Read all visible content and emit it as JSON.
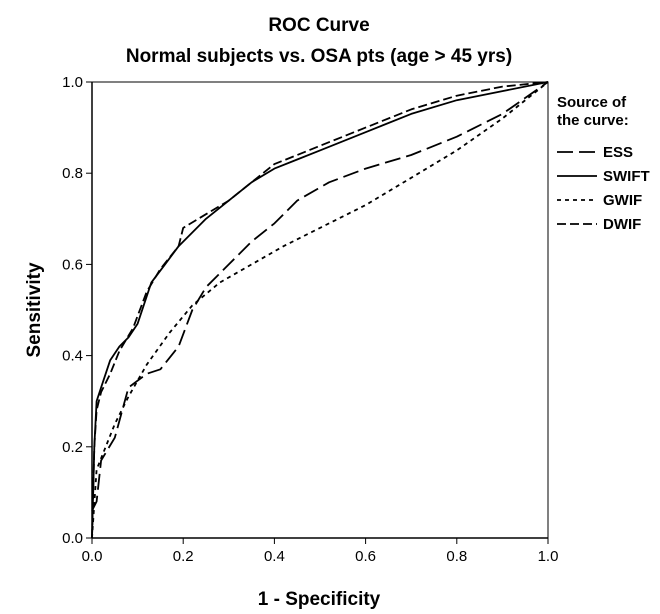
{
  "chart_data": {
    "type": "line",
    "title": "ROC Curve",
    "subtitle": "Normal subjects vs. OSA pts (age > 45 yrs)",
    "xlabel": "1 - Specificity",
    "ylabel": "Sensitivity",
    "xlim": [
      0.0,
      1.0
    ],
    "ylim": [
      0.0,
      1.0
    ],
    "xticks": [
      "0.0",
      "0.2",
      "0.4",
      "0.6",
      "0.8",
      "1.0"
    ],
    "yticks": [
      "0.0",
      "0.2",
      "0.4",
      "0.6",
      "0.8",
      "1.0"
    ],
    "grid": false,
    "legend": {
      "title": "Source of the curve:",
      "title_lines": [
        "Source of",
        "the curve:"
      ],
      "placement": "right"
    },
    "series": [
      {
        "name": "ESS",
        "style": "long-dash",
        "x": [
          0.0,
          0.01,
          0.02,
          0.05,
          0.08,
          0.12,
          0.15,
          0.19,
          0.22,
          0.25,
          0.3,
          0.35,
          0.4,
          0.45,
          0.52,
          0.6,
          0.7,
          0.8,
          0.9,
          1.0
        ],
        "y": [
          0.06,
          0.08,
          0.17,
          0.22,
          0.33,
          0.36,
          0.37,
          0.42,
          0.5,
          0.55,
          0.6,
          0.65,
          0.69,
          0.74,
          0.78,
          0.81,
          0.84,
          0.88,
          0.93,
          1.0
        ]
      },
      {
        "name": "SWIFT",
        "style": "solid",
        "x": [
          0.0,
          0.005,
          0.01,
          0.02,
          0.04,
          0.06,
          0.08,
          0.1,
          0.13,
          0.16,
          0.19,
          0.22,
          0.25,
          0.3,
          0.35,
          0.4,
          0.45,
          0.5,
          0.6,
          0.7,
          0.8,
          0.9,
          1.0
        ],
        "y": [
          0.0,
          0.2,
          0.3,
          0.33,
          0.39,
          0.42,
          0.44,
          0.47,
          0.56,
          0.6,
          0.64,
          0.67,
          0.7,
          0.74,
          0.78,
          0.81,
          0.83,
          0.85,
          0.89,
          0.93,
          0.96,
          0.98,
          1.0
        ]
      },
      {
        "name": "GWIF",
        "style": "short-dash",
        "x": [
          0.0,
          0.01,
          0.03,
          0.05,
          0.08,
          0.12,
          0.17,
          0.22,
          0.28,
          0.35,
          0.42,
          0.5,
          0.6,
          0.7,
          0.8,
          0.9,
          1.0
        ],
        "y": [
          0.0,
          0.15,
          0.2,
          0.25,
          0.31,
          0.38,
          0.45,
          0.51,
          0.56,
          0.6,
          0.64,
          0.68,
          0.73,
          0.79,
          0.85,
          0.92,
          1.0
        ]
      },
      {
        "name": "DWIF",
        "style": "dash",
        "x": [
          0.0,
          0.005,
          0.01,
          0.02,
          0.04,
          0.06,
          0.09,
          0.12,
          0.15,
          0.19,
          0.2,
          0.25,
          0.3,
          0.35,
          0.4,
          0.45,
          0.5,
          0.6,
          0.7,
          0.8,
          0.9,
          1.0
        ],
        "y": [
          0.0,
          0.2,
          0.28,
          0.32,
          0.36,
          0.41,
          0.46,
          0.54,
          0.59,
          0.64,
          0.68,
          0.71,
          0.74,
          0.78,
          0.82,
          0.84,
          0.86,
          0.9,
          0.94,
          0.97,
          0.99,
          1.0
        ]
      }
    ]
  }
}
